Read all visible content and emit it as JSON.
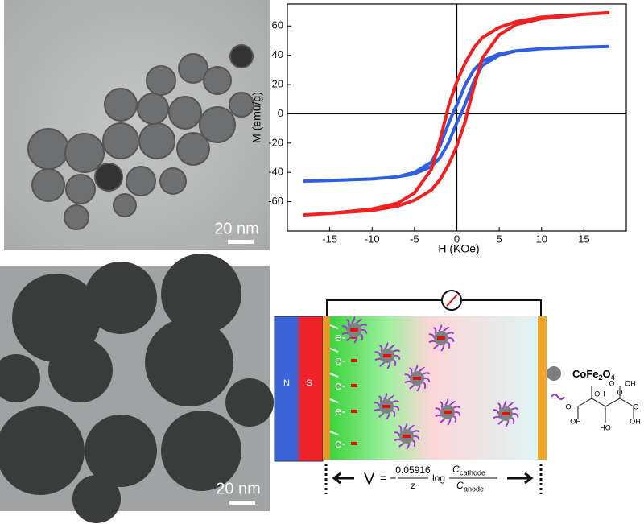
{
  "chart_data": {
    "type": "line",
    "x_label": "H (KOe)",
    "y_label": "M (emu/g)",
    "xlim": [
      -20,
      20
    ],
    "ylim": [
      -80,
      75
    ],
    "xticks": [
      -15,
      -10,
      -5,
      0,
      5,
      10,
      15
    ],
    "yticks": [
      -60,
      -40,
      -20,
      0,
      20,
      40,
      60
    ],
    "series": [
      {
        "color": "#2f5fe0",
        "x": [
          18,
          15,
          10,
          7,
          5,
          3,
          2,
          1,
          0.5,
          0,
          -0.5,
          -1,
          -2,
          -3,
          -5,
          -7,
          -10,
          -15,
          -18,
          -15,
          -10,
          -7,
          -5,
          -3,
          -2,
          -1,
          -0.5,
          0,
          0.5,
          1,
          2,
          3,
          5,
          7,
          10,
          15,
          18
        ],
        "values": [
          46,
          45.5,
          44.5,
          43,
          41,
          36,
          30,
          20,
          13,
          6,
          0,
          -7,
          -22,
          -33,
          -40,
          -43,
          -44.5,
          -45.5,
          -46,
          -45.5,
          -44.5,
          -43,
          -41,
          -36,
          -30,
          -20,
          -13,
          -6,
          0,
          7,
          22,
          33,
          40,
          43,
          44.5,
          45.5,
          46
        ]
      },
      {
        "color": "#ee2222",
        "x": [
          18,
          15,
          10,
          7,
          5,
          3,
          2,
          1,
          0,
          -1,
          -1.2,
          -2,
          -3,
          -5,
          -7,
          -10,
          -15,
          -18,
          -15,
          -10,
          -7,
          -5,
          -3,
          -2,
          -1,
          0,
          1,
          1.2,
          2,
          3,
          5,
          7,
          10,
          15,
          18
        ],
        "values": [
          69,
          68,
          66,
          63,
          59,
          52,
          45,
          35,
          22,
          5,
          0,
          -18,
          -38,
          -54,
          -61,
          -65,
          -68,
          -69,
          -68,
          -66,
          -63,
          -59,
          -52,
          -45,
          -35,
          -22,
          -5,
          0,
          18,
          38,
          54,
          61,
          65,
          68,
          69
        ]
      }
    ]
  },
  "scale_bars": [
    "20 nm",
    "20 nm"
  ],
  "schematic": {
    "magnet": [
      "N",
      "S"
    ],
    "electrons": [
      "e-",
      "e-",
      "e-",
      "e-",
      "e-"
    ],
    "legend_particle": [
      "CoFe",
      "2",
      "O",
      "4"
    ],
    "molecule_labels": [
      "O",
      "OH",
      "O",
      "OH",
      "HO",
      "O",
      "OH",
      "OH",
      "O"
    ],
    "equation": {
      "lhs": "V",
      "sign": "= −",
      "coefficient": "0.05916",
      "divisor": "z",
      "log": "log",
      "top_c": "C",
      "top_sub": "cathode",
      "bottom_c": "C",
      "bottom_sub": "anode"
    }
  }
}
